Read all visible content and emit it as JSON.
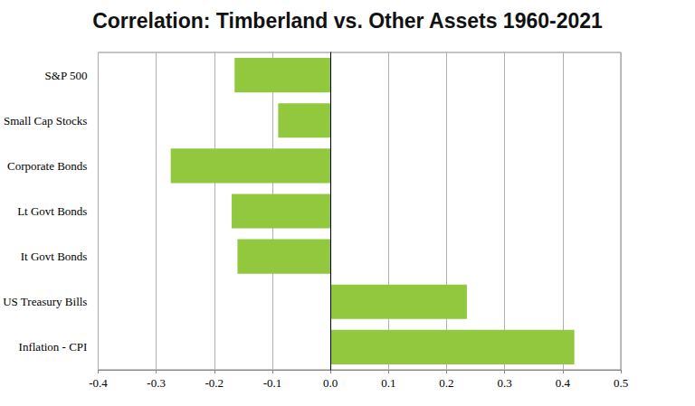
{
  "chart_data": {
    "type": "bar",
    "title": "Correlation: Timberland vs. Other Assets 1960-2021",
    "orientation": "horizontal",
    "categories": [
      "S&P 500",
      "Small Cap Stocks",
      "Corporate Bonds",
      "Lt Govt Bonds",
      "It Govt Bonds",
      "US Treasury Bills",
      "Inflation - CPI"
    ],
    "values": [
      -0.165,
      -0.09,
      -0.275,
      -0.17,
      -0.16,
      0.235,
      0.42
    ],
    "color": "#92c83e",
    "xlim": [
      -0.4,
      0.5
    ],
    "xticks": [
      -0.4,
      -0.3,
      -0.2,
      -0.1,
      {
        "value": 0,
        "label": "0.0"
      },
      0.1,
      0.2,
      0.3,
      0.4,
      0.5
    ],
    "grid": true
  }
}
